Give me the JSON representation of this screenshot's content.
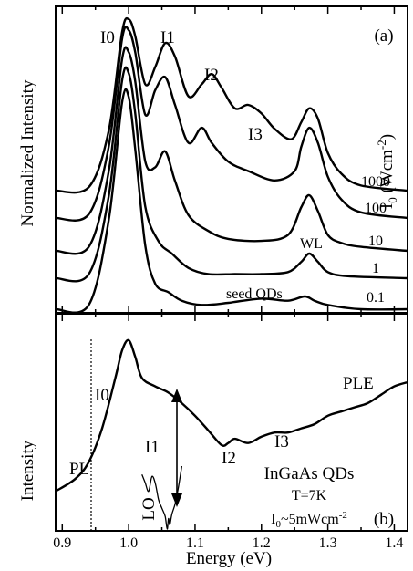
{
  "chart_data": [
    {
      "panel": "a",
      "type": "line",
      "panel_label": "(a)",
      "ylabel": "Normalized Intensity",
      "xlim": [
        0.89,
        1.42
      ],
      "legend_title": "I_0 (Wcm^-2)",
      "peak_labels": [
        "I0",
        "I1",
        "I2",
        "I3",
        "WL",
        "seed QDs"
      ],
      "series": [
        {
          "name": "1000",
          "x": [
            0.89,
            0.94,
            0.97,
            0.99,
            1.0,
            1.01,
            1.025,
            1.04,
            1.055,
            1.07,
            1.09,
            1.11,
            1.125,
            1.14,
            1.16,
            1.18,
            1.2,
            1.22,
            1.245,
            1.26,
            1.272,
            1.285,
            1.3,
            1.32,
            1.35,
            1.42
          ],
          "y": [
            0.0,
            0.02,
            0.35,
            0.92,
            1.0,
            0.9,
            0.62,
            0.72,
            0.86,
            0.78,
            0.55,
            0.62,
            0.68,
            0.6,
            0.48,
            0.5,
            0.45,
            0.36,
            0.3,
            0.4,
            0.48,
            0.42,
            0.22,
            0.1,
            0.03,
            0.0
          ]
        },
        {
          "name": "100",
          "x": [
            0.89,
            0.94,
            0.97,
            0.99,
            1.0,
            1.01,
            1.025,
            1.04,
            1.055,
            1.07,
            1.09,
            1.11,
            1.125,
            1.15,
            1.18,
            1.22,
            1.25,
            1.26,
            1.272,
            1.285,
            1.3,
            1.32,
            1.35,
            1.42
          ],
          "y": [
            0.0,
            0.02,
            0.38,
            0.95,
            1.0,
            0.88,
            0.55,
            0.68,
            0.75,
            0.6,
            0.4,
            0.48,
            0.4,
            0.3,
            0.25,
            0.2,
            0.25,
            0.38,
            0.48,
            0.4,
            0.22,
            0.1,
            0.03,
            0.0
          ]
        },
        {
          "name": "10",
          "x": [
            0.89,
            0.94,
            0.97,
            0.99,
            1.0,
            1.01,
            1.025,
            1.04,
            1.055,
            1.07,
            1.09,
            1.12,
            1.15,
            1.2,
            1.24,
            1.26,
            1.272,
            1.285,
            1.3,
            1.32,
            1.35,
            1.42
          ],
          "y": [
            0.0,
            0.02,
            0.4,
            0.96,
            1.0,
            0.85,
            0.45,
            0.42,
            0.5,
            0.35,
            0.18,
            0.1,
            0.06,
            0.05,
            0.08,
            0.22,
            0.28,
            0.2,
            0.08,
            0.04,
            0.02,
            0.0
          ]
        },
        {
          "name": "1",
          "x": [
            0.89,
            0.94,
            0.97,
            0.99,
            1.0,
            1.01,
            1.025,
            1.045,
            1.065,
            1.09,
            1.12,
            1.16,
            1.2,
            1.24,
            1.26,
            1.272,
            1.285,
            1.3,
            1.33,
            1.42
          ],
          "y": [
            0.0,
            0.02,
            0.4,
            0.96,
            1.0,
            0.8,
            0.35,
            0.18,
            0.12,
            0.05,
            0.02,
            0.02,
            0.02,
            0.03,
            0.08,
            0.12,
            0.08,
            0.03,
            0.01,
            0.0
          ]
        },
        {
          "name": "0.1",
          "x": [
            0.89,
            0.94,
            0.97,
            0.99,
            1.0,
            1.01,
            1.025,
            1.04,
            1.06,
            1.08,
            1.11,
            1.15,
            1.2,
            1.24,
            1.265,
            1.28,
            1.3,
            1.35,
            1.42
          ],
          "y": [
            0.0,
            0.02,
            0.42,
            0.97,
            1.0,
            0.75,
            0.3,
            0.12,
            0.08,
            0.04,
            0.02,
            0.03,
            0.05,
            0.04,
            0.06,
            0.04,
            0.02,
            0.0,
            0.0
          ]
        }
      ]
    },
    {
      "panel": "b",
      "type": "line",
      "panel_label": "(b)",
      "xlabel": "Energy  (eV)",
      "ylabel": "Intensity",
      "xlim": [
        0.89,
        1.42
      ],
      "x_ticks": [
        "0.9",
        "1.0",
        "1.1",
        "1.2",
        "1.3",
        "1.4"
      ],
      "annotations": [
        "I0",
        "I1",
        "I2",
        "I3",
        "LO",
        "PL",
        "PLE"
      ],
      "sample_text": [
        "InGaAs QDs",
        "T=7K",
        "I_0~5mWcm^-2"
      ],
      "series": [
        {
          "name": "PL",
          "x": [
            0.89,
            0.92,
            0.94,
            0.96,
            0.98,
            0.99,
            1.0,
            1.01,
            1.02,
            1.04,
            1.06,
            1.08,
            1.1,
            1.12,
            1.14,
            1.15,
            1.16,
            1.18,
            1.2,
            1.22,
            1.24,
            1.26,
            1.28,
            1.3,
            1.32,
            1.34,
            1.36,
            1.38,
            1.4,
            1.42
          ],
          "y": [
            0.18,
            0.24,
            0.32,
            0.48,
            0.72,
            0.85,
            0.9,
            0.82,
            0.72,
            0.68,
            0.65,
            0.6,
            0.54,
            0.47,
            0.4,
            0.41,
            0.43,
            0.41,
            0.44,
            0.46,
            0.46,
            0.48,
            0.5,
            0.54,
            0.56,
            0.58,
            0.6,
            0.64,
            0.68,
            0.7
          ]
        },
        {
          "name": "PLE",
          "x": [
            1.02,
            1.025,
            1.03,
            1.035,
            1.04,
            1.045,
            1.05,
            1.055,
            1.058,
            1.06,
            1.062,
            1.065,
            1.07,
            1.075,
            1.08
          ],
          "y": [
            0.26,
            0.22,
            0.18,
            0.25,
            0.22,
            0.14,
            0.1,
            0.06,
            0.0,
            0.05,
            0.02,
            0.07,
            0.12,
            0.2,
            0.3
          ]
        }
      ]
    }
  ]
}
